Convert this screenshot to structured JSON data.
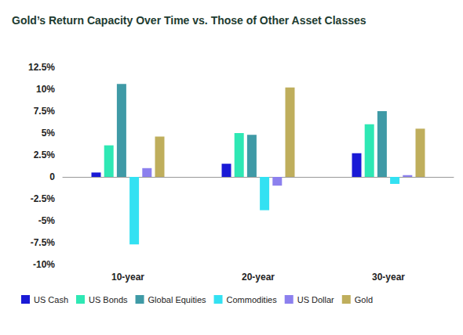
{
  "chart_data": {
    "type": "bar",
    "title": "Gold’s Return Capacity Over Time vs. Those of Other Asset Classes",
    "categories": [
      "10-year",
      "20-year",
      "30-year"
    ],
    "series": [
      {
        "name": "US Cash",
        "color": "#1a1ad6",
        "values": [
          0.5,
          1.5,
          2.7
        ]
      },
      {
        "name": "US Bonds",
        "color": "#2ee8b4",
        "values": [
          3.6,
          5.0,
          6.0
        ]
      },
      {
        "name": "Global Equities",
        "color": "#3f9aa6",
        "values": [
          10.6,
          4.8,
          7.5
        ]
      },
      {
        "name": "Commodities",
        "color": "#33e1f2",
        "values": [
          -7.7,
          -3.8,
          -0.8
        ]
      },
      {
        "name": "US Dollar",
        "color": "#8c80ee",
        "values": [
          1.0,
          -1.0,
          0.2
        ]
      },
      {
        "name": "Gold",
        "color": "#bfae5c",
        "values": [
          4.6,
          10.2,
          5.5
        ]
      }
    ],
    "ylim": [
      -10,
      12.5
    ],
    "yticks": [
      {
        "value": -10,
        "label": "-10%"
      },
      {
        "value": -7.5,
        "label": "-7.5%"
      },
      {
        "value": -5,
        "label": "-5%"
      },
      {
        "value": -2.5,
        "label": "-2.5%"
      },
      0,
      {
        "value": 2.5,
        "label": "2.5%"
      },
      {
        "value": 5,
        "label": "5%"
      },
      {
        "value": 7.5,
        "label": "7.5%"
      },
      {
        "value": 10,
        "label": "10%"
      },
      {
        "value": 12.5,
        "label": "12.5%"
      }
    ],
    "grid": false,
    "legend": "bottom"
  }
}
